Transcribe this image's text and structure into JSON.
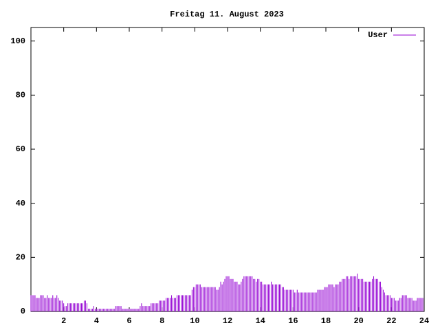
{
  "chart_data": {
    "type": "impulse",
    "title": "Freitag 11. August 2023",
    "xlim": [
      0,
      24
    ],
    "xticks": [
      2,
      4,
      6,
      8,
      10,
      12,
      14,
      16,
      18,
      20,
      22,
      24
    ],
    "ylim": [
      0,
      105
    ],
    "yticks": [
      0,
      20,
      40,
      60,
      80,
      100
    ],
    "legend": "top-right",
    "x": [
      0,
      0.083,
      0.167,
      0.25,
      0.333,
      0.417,
      0.5,
      0.583,
      0.667,
      0.75,
      0.833,
      0.917,
      1,
      1.083,
      1.167,
      1.25,
      1.333,
      1.417,
      1.5,
      1.583,
      1.667,
      1.75,
      1.833,
      1.917,
      2,
      2.083,
      2.167,
      2.25,
      2.333,
      2.417,
      2.5,
      2.583,
      2.667,
      2.75,
      2.833,
      2.917,
      3,
      3.083,
      3.167,
      3.25,
      3.333,
      3.417,
      3.5,
      3.583,
      3.667,
      3.75,
      3.833,
      3.917,
      4,
      4.083,
      4.167,
      4.25,
      4.333,
      4.417,
      4.5,
      4.583,
      4.667,
      4.75,
      4.833,
      4.917,
      5,
      5.083,
      5.167,
      5.25,
      5.333,
      5.417,
      5.5,
      5.583,
      5.667,
      5.75,
      5.833,
      5.917,
      6,
      6.083,
      6.167,
      6.25,
      6.333,
      6.417,
      6.5,
      6.583,
      6.667,
      6.75,
      6.833,
      6.917,
      7,
      7.083,
      7.167,
      7.25,
      7.333,
      7.417,
      7.5,
      7.583,
      7.667,
      7.75,
      7.833,
      7.917,
      8,
      8.083,
      8.167,
      8.25,
      8.333,
      8.417,
      8.5,
      8.583,
      8.667,
      8.75,
      8.833,
      8.917,
      9,
      9.083,
      9.167,
      9.25,
      9.333,
      9.417,
      9.5,
      9.583,
      9.667,
      9.75,
      9.833,
      9.917,
      10,
      10.083,
      10.167,
      10.25,
      10.333,
      10.417,
      10.5,
      10.583,
      10.667,
      10.75,
      10.833,
      10.917,
      11,
      11.083,
      11.167,
      11.25,
      11.333,
      11.417,
      11.5,
      11.583,
      11.667,
      11.75,
      11.833,
      11.917,
      12,
      12.083,
      12.167,
      12.25,
      12.333,
      12.417,
      12.5,
      12.583,
      12.667,
      12.75,
      12.833,
      12.917,
      13,
      13.083,
      13.167,
      13.25,
      13.333,
      13.417,
      13.5,
      13.583,
      13.667,
      13.75,
      13.833,
      13.917,
      14,
      14.083,
      14.167,
      14.25,
      14.333,
      14.417,
      14.5,
      14.583,
      14.667,
      14.75,
      14.833,
      14.917,
      15,
      15.083,
      15.167,
      15.25,
      15.333,
      15.417,
      15.5,
      15.583,
      15.667,
      15.75,
      15.833,
      15.917,
      16,
      16.083,
      16.167,
      16.25,
      16.333,
      16.417,
      16.5,
      16.583,
      16.667,
      16.75,
      16.833,
      16.917,
      17,
      17.083,
      17.167,
      17.25,
      17.333,
      17.417,
      17.5,
      17.583,
      17.667,
      17.75,
      17.833,
      17.917,
      18,
      18.083,
      18.167,
      18.25,
      18.333,
      18.417,
      18.5,
      18.583,
      18.667,
      18.75,
      18.833,
      18.917,
      19,
      19.083,
      19.167,
      19.25,
      19.333,
      19.417,
      19.5,
      19.583,
      19.667,
      19.75,
      19.833,
      19.917,
      20,
      20.083,
      20.167,
      20.25,
      20.333,
      20.417,
      20.5,
      20.583,
      20.667,
      20.75,
      20.833,
      20.917,
      21,
      21.083,
      21.167,
      21.25,
      21.333,
      21.417,
      21.5,
      21.583,
      21.667,
      21.75,
      21.833,
      21.917,
      22,
      22.083,
      22.167,
      22.25,
      22.333,
      22.417,
      22.5,
      22.583,
      22.667,
      22.75,
      22.833,
      22.917,
      23,
      23.083,
      23.167,
      23.25,
      23.333,
      23.417,
      23.5,
      23.583,
      23.667,
      23.75,
      23.833,
      23.917
    ],
    "series": [
      {
        "name": "User",
        "color": "#9400d3",
        "values": [
          6,
          6,
          6,
          6,
          5,
          5,
          5,
          6,
          6,
          6,
          5,
          5,
          6,
          5,
          5,
          5,
          6,
          5,
          5,
          6,
          5,
          4,
          4,
          4,
          3,
          2,
          2,
          3,
          3,
          3,
          3,
          3,
          3,
          3,
          3,
          3,
          3,
          3,
          3,
          4,
          4,
          3,
          1,
          1,
          1,
          1,
          2,
          1,
          1,
          1,
          1,
          1,
          1,
          1,
          1,
          1,
          1,
          1,
          1,
          1,
          1,
          1,
          2,
          2,
          2,
          2,
          2,
          1,
          1,
          1,
          1,
          1,
          1,
          1,
          1,
          1,
          1,
          1,
          1,
          1,
          2,
          3,
          2,
          2,
          2,
          2,
          2,
          2,
          3,
          3,
          3,
          3,
          3,
          3,
          4,
          4,
          4,
          4,
          4,
          5,
          5,
          5,
          5,
          6,
          5,
          5,
          5,
          6,
          6,
          6,
          6,
          6,
          6,
          6,
          6,
          6,
          6,
          6,
          8,
          9,
          9,
          10,
          10,
          10,
          10,
          9,
          9,
          9,
          9,
          9,
          9,
          9,
          9,
          9,
          9,
          9,
          8,
          8,
          9,
          11,
          10,
          11,
          12,
          13,
          13,
          13,
          12,
          12,
          12,
          11,
          11,
          11,
          10,
          10,
          11,
          12,
          13,
          13,
          13,
          13,
          13,
          13,
          13,
          12,
          12,
          11,
          12,
          12,
          11,
          11,
          10,
          10,
          10,
          10,
          10,
          10,
          11,
          10,
          10,
          10,
          10,
          10,
          10,
          10,
          9,
          9,
          8,
          8,
          8,
          8,
          8,
          8,
          8,
          7,
          7,
          8,
          7,
          7,
          7,
          7,
          7,
          7,
          7,
          7,
          7,
          7,
          7,
          7,
          7,
          7,
          8,
          8,
          8,
          8,
          8,
          9,
          9,
          9,
          10,
          10,
          10,
          10,
          9,
          10,
          10,
          10,
          11,
          11,
          12,
          12,
          12,
          13,
          13,
          12,
          13,
          13,
          13,
          13,
          13,
          14,
          12,
          12,
          12,
          12,
          11,
          11,
          11,
          11,
          11,
          11,
          12,
          13,
          12,
          12,
          12,
          11,
          11,
          9,
          8,
          7,
          6,
          6,
          6,
          6,
          5,
          5,
          5,
          4,
          4,
          4,
          5,
          5,
          6,
          6,
          6,
          6,
          5,
          5,
          5,
          5,
          4,
          4,
          4,
          5,
          5,
          5,
          5,
          5
        ]
      }
    ]
  }
}
